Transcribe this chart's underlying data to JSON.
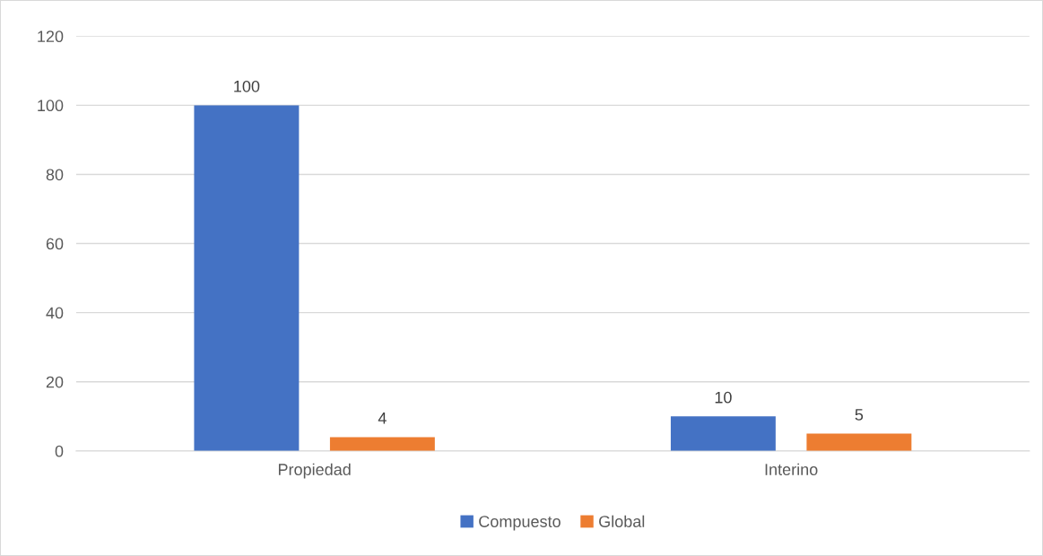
{
  "chart_data": {
    "type": "bar",
    "categories": [
      "Propiedad",
      "Interino"
    ],
    "series": [
      {
        "name": "Compuesto",
        "color": "#4472c4",
        "values": [
          100,
          10
        ]
      },
      {
        "name": "Global",
        "color": "#ed7d31",
        "values": [
          4,
          5
        ]
      }
    ],
    "ylim": [
      0,
      120
    ],
    "yticks": [
      0,
      20,
      40,
      60,
      80,
      100,
      120
    ],
    "grid": "y",
    "legend": "bottom",
    "data_labels": true
  }
}
